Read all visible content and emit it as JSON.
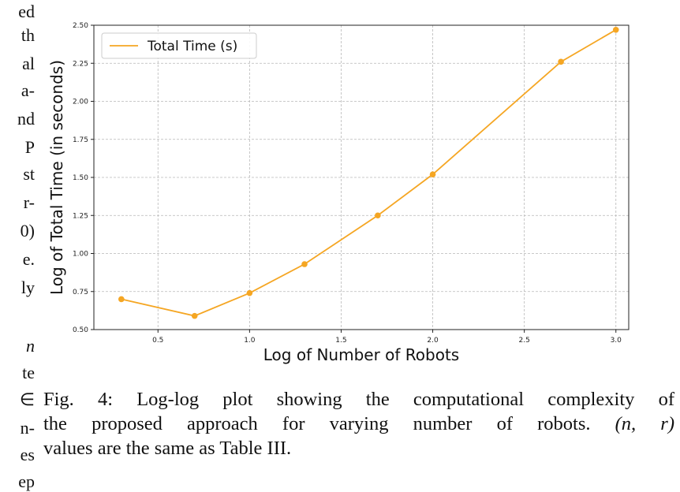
{
  "left_column_fragments": [
    "ed",
    "th",
    "al",
    "a-",
    "nd",
    "P",
    "st",
    "r-",
    "0)",
    "e.",
    "ly",
    "",
    "n",
    "te",
    "∈",
    "n-",
    "es",
    "ep"
  ],
  "caption": {
    "line1": "Fig. 4: Log-log plot showing the computational complexity of",
    "line2_pre": "the proposed approach for varying number of robots.",
    "line2_math": "(n, r)",
    "line3": "values are the same as Table III."
  },
  "chart_data": {
    "type": "line",
    "title": "",
    "xlabel": "Log of Number of Robots",
    "ylabel": "Log of Total Time (in seconds)",
    "xlim": [
      0.15,
      3.07
    ],
    "ylim": [
      0.5,
      2.5
    ],
    "xticks": [
      "0.5",
      "1.0",
      "1.5",
      "2.0",
      "2.5",
      "3.0"
    ],
    "xtick_values": [
      0.5,
      1.0,
      1.5,
      2.0,
      2.5,
      3.0
    ],
    "yticks": [
      "0.50",
      "0.75",
      "1.00",
      "1.25",
      "1.50",
      "1.75",
      "2.00",
      "2.25",
      "2.50"
    ],
    "ytick_values": [
      0.5,
      0.75,
      1.0,
      1.25,
      1.5,
      1.75,
      2.0,
      2.25,
      2.5
    ],
    "grid": true,
    "legend_position": "top-left",
    "series": [
      {
        "name": "Total Time (s)",
        "color": "#f5a623",
        "x": [
          0.3,
          0.7,
          1.0,
          1.3,
          1.7,
          2.0,
          2.7,
          3.0
        ],
        "y": [
          0.7,
          0.59,
          0.74,
          0.93,
          1.25,
          1.52,
          2.26,
          2.47
        ]
      }
    ]
  }
}
